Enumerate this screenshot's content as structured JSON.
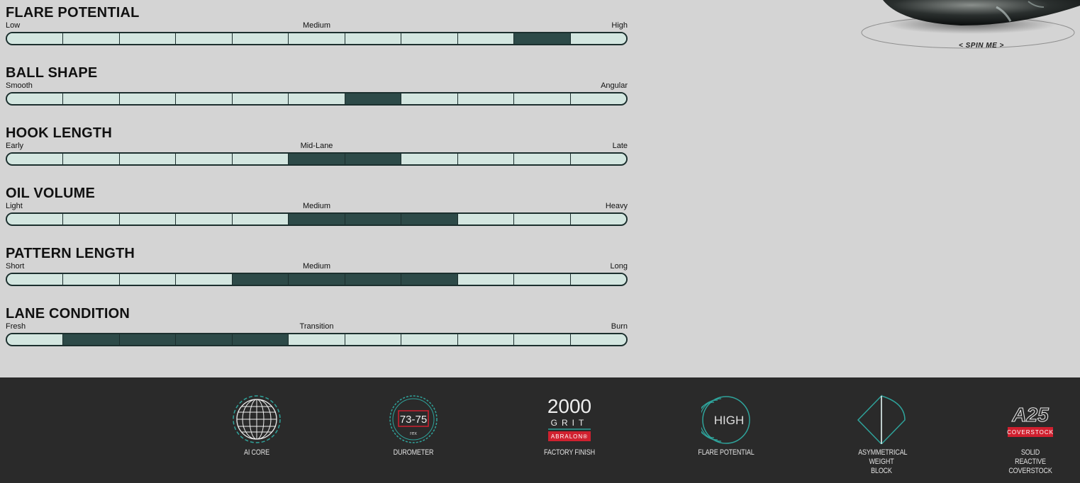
{
  "specs": [
    {
      "title": "FLARE POTENTIAL",
      "low": "Low",
      "mid": "Medium",
      "high": "High",
      "segments": [
        0,
        0,
        0,
        0,
        0,
        0,
        0,
        0,
        0,
        1,
        0
      ]
    },
    {
      "title": "BALL SHAPE",
      "low": "Smooth",
      "mid": "",
      "high": "Angular",
      "segments": [
        0,
        0,
        0,
        0,
        0,
        0,
        1,
        0,
        0,
        0,
        0
      ]
    },
    {
      "title": "HOOK LENGTH",
      "low": "Early",
      "mid": "Mid-Lane",
      "high": "Late",
      "segments": [
        0,
        0,
        0,
        0,
        0,
        1,
        1,
        0,
        0,
        0,
        0
      ]
    },
    {
      "title": "OIL VOLUME",
      "low": "Light",
      "mid": "Medium",
      "high": "Heavy",
      "segments": [
        0,
        0,
        0,
        0,
        0,
        1,
        1,
        1,
        0,
        0,
        0
      ]
    },
    {
      "title": "PATTERN LENGTH",
      "low": "Short",
      "mid": "Medium",
      "high": "Long",
      "segments": [
        0,
        0,
        0,
        0,
        1,
        1,
        1,
        1,
        0,
        0,
        0
      ]
    },
    {
      "title": "LANE CONDITION",
      "low": "Fresh",
      "mid": "Transition",
      "high": "Burn",
      "segments": [
        0,
        1,
        1,
        1,
        1,
        0,
        0,
        0,
        0,
        0,
        0
      ]
    }
  ],
  "spin": {
    "label": "< SPIN ME >"
  },
  "features": [
    {
      "caption": "AI CORE",
      "icon": "core-globe-icon"
    },
    {
      "caption": "DUROMETER",
      "icon": "durometer-icon",
      "value": "73-75",
      "unit": "rex"
    },
    {
      "caption": "FACTORY FINISH",
      "icon": "grit-icon",
      "grit": "2000",
      "grit_word": "GRIT",
      "brand": "ABRALON®"
    },
    {
      "caption": "FLARE POTENTIAL",
      "icon": "flare-icon",
      "level": "HIGH"
    },
    {
      "caption": "ASYMMETRICAL WEIGHT BLOCK",
      "icon": "weight-block-icon"
    },
    {
      "caption": "SOLID REACTIVE COVERSTOCK",
      "icon": "coverstock-icon",
      "badge": "COVERSTOCK",
      "logo": "A25"
    }
  ],
  "colors": {
    "accent": "#2fa39b",
    "bar_on": "#2d4a48",
    "bar_off": "#d3e6e0",
    "footer_bg": "#2a2a2a",
    "badge_red": "#d0202f"
  }
}
